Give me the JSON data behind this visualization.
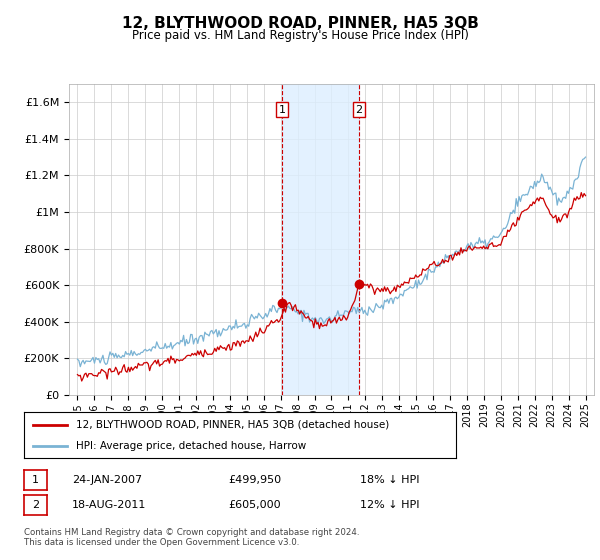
{
  "title": "12, BLYTHWOOD ROAD, PINNER, HA5 3QB",
  "subtitle": "Price paid vs. HM Land Registry's House Price Index (HPI)",
  "footer": "Contains HM Land Registry data © Crown copyright and database right 2024.\nThis data is licensed under the Open Government Licence v3.0.",
  "legend_line1": "12, BLYTHWOOD ROAD, PINNER, HA5 3QB (detached house)",
  "legend_line2": "HPI: Average price, detached house, Harrow",
  "transaction1_label": "1",
  "transaction1_date": "24-JAN-2007",
  "transaction1_price": "£499,950",
  "transaction1_hpi": "18% ↓ HPI",
  "transaction2_label": "2",
  "transaction2_date": "18-AUG-2011",
  "transaction2_price": "£605,000",
  "transaction2_hpi": "12% ↓ HPI",
  "hpi_color": "#7ab3d4",
  "price_color": "#cc0000",
  "background_color": "#ffffff",
  "grid_color": "#cccccc",
  "shade_color": "#ddeeff",
  "ylim": [
    0,
    1700000
  ],
  "yticks": [
    0,
    200000,
    400000,
    600000,
    800000,
    1000000,
    1200000,
    1400000,
    1600000
  ],
  "ytick_labels": [
    "£0",
    "£200K",
    "£400K",
    "£600K",
    "£800K",
    "£1M",
    "£1.2M",
    "£1.4M",
    "£1.6M"
  ],
  "trans1_x": 2007.07,
  "trans1_y": 499950,
  "trans2_x": 2011.63,
  "trans2_y": 605000,
  "shade_x1": 2007.07,
  "shade_x2": 2011.63,
  "xmin": 1994.5,
  "xmax": 2025.5,
  "xticks": [
    1995,
    1996,
    1997,
    1998,
    1999,
    2000,
    2001,
    2002,
    2003,
    2004,
    2005,
    2006,
    2007,
    2008,
    2009,
    2010,
    2011,
    2012,
    2013,
    2014,
    2015,
    2016,
    2017,
    2018,
    2019,
    2020,
    2021,
    2022,
    2023,
    2024,
    2025
  ]
}
